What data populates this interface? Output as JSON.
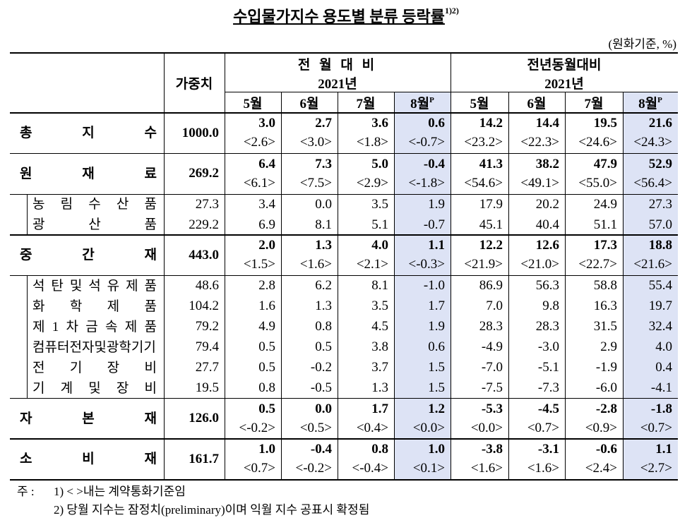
{
  "title": "수입물가지수 용도별 분류 등락률",
  "title_sup": "1)2)",
  "unit": "(원화기준, %)",
  "header": {
    "weight": "가중치",
    "group1": "전 월 대 비",
    "group2": "전년동월대비",
    "year1": "2021년",
    "year2": "2021년",
    "months": [
      "5월",
      "6월",
      "7월",
      "8월",
      "5월",
      "6월",
      "7월",
      "8월"
    ],
    "prelim_mark": "P"
  },
  "sections": [
    {
      "label": "총 지 수",
      "weight": "1000.0",
      "values": [
        "3.0",
        "2.7",
        "3.6",
        "0.6",
        "14.2",
        "14.4",
        "19.5",
        "21.6"
      ],
      "contract": [
        "<2.6>",
        "<3.0>",
        "<1.8>",
        "<-0.7>",
        "<23.2>",
        "<22.3>",
        "<24.6>",
        "<24.3>"
      ],
      "items": []
    },
    {
      "label": "원 재 료",
      "weight": "269.2",
      "values": [
        "6.4",
        "7.3",
        "5.0",
        "-0.4",
        "41.3",
        "38.2",
        "47.9",
        "52.9"
      ],
      "contract": [
        "<6.1>",
        "<7.5>",
        "<2.9>",
        "<-1.8>",
        "<54.6>",
        "<49.1>",
        "<55.0>",
        "<56.4>"
      ],
      "items": [
        {
          "label": "농 림 수 산 품",
          "weight": "27.3",
          "values": [
            "3.4",
            "0.0",
            "3.5",
            "1.9",
            "17.9",
            "20.2",
            "24.9",
            "27.3"
          ]
        },
        {
          "label": "광 산 품",
          "weight": "229.2",
          "values": [
            "6.9",
            "8.1",
            "5.1",
            "-0.7",
            "45.1",
            "40.4",
            "51.1",
            "57.0"
          ]
        }
      ]
    },
    {
      "label": "중 간 재",
      "weight": "443.0",
      "values": [
        "2.0",
        "1.3",
        "4.0",
        "1.1",
        "12.2",
        "12.6",
        "17.3",
        "18.8"
      ],
      "contract": [
        "<1.5>",
        "<1.6>",
        "<2.1>",
        "<-0.3>",
        "<21.9>",
        "<21.0>",
        "<22.7>",
        "<21.6>"
      ],
      "items": [
        {
          "label": "석 탄 및 석 유 제 품",
          "weight": "48.6",
          "values": [
            "2.8",
            "6.2",
            "8.1",
            "-1.0",
            "86.9",
            "56.3",
            "58.8",
            "55.4"
          ]
        },
        {
          "label": "화 학 제 품",
          "weight": "104.2",
          "values": [
            "1.6",
            "1.3",
            "3.5",
            "1.7",
            "7.0",
            "9.8",
            "16.3",
            "19.7"
          ]
        },
        {
          "label": "제 1 차 금 속 제 품",
          "weight": "79.2",
          "values": [
            "4.9",
            "0.8",
            "4.5",
            "1.9",
            "28.3",
            "28.3",
            "31.5",
            "32.4"
          ]
        },
        {
          "label": "컴퓨터전자및광학기기",
          "weight": "79.4",
          "values": [
            "0.5",
            "0.5",
            "3.8",
            "0.6",
            "-4.9",
            "-3.0",
            "2.9",
            "4.0"
          ]
        },
        {
          "label": "전 기 장 비",
          "weight": "27.7",
          "values": [
            "0.5",
            "-0.2",
            "3.7",
            "1.5",
            "-7.0",
            "-5.1",
            "-1.9",
            "0.4"
          ]
        },
        {
          "label": "기 계 및 장 비",
          "weight": "19.5",
          "values": [
            "0.8",
            "-0.5",
            "1.3",
            "1.5",
            "-7.5",
            "-7.3",
            "-6.0",
            "-4.1"
          ]
        }
      ]
    },
    {
      "label": "자 본 재",
      "weight": "126.0",
      "values": [
        "0.5",
        "0.0",
        "1.7",
        "1.2",
        "-5.3",
        "-4.5",
        "-2.8",
        "-1.8"
      ],
      "contract": [
        "<-0.2>",
        "<0.5>",
        "<0.4>",
        "<0.0>",
        "<0.0>",
        "<0.7>",
        "<0.9>",
        "<0.7>"
      ],
      "items": []
    },
    {
      "label": "소 비 재",
      "weight": "161.7",
      "values": [
        "1.0",
        "-0.4",
        "0.8",
        "1.0",
        "-3.8",
        "-3.1",
        "-0.6",
        "1.1"
      ],
      "contract": [
        "<0.7>",
        "<-0.2>",
        "<-0.4>",
        "<0.1>",
        "<1.6>",
        "<1.6>",
        "<2.4>",
        "<2.7>"
      ],
      "items": []
    }
  ],
  "notes": {
    "prefix": "주 :",
    "items": [
      "1) < >내는 계약통화기준임",
      "2) 당월 지수는 잠정치(preliminary)이며 익월 지수 공표시 확정됨"
    ]
  }
}
